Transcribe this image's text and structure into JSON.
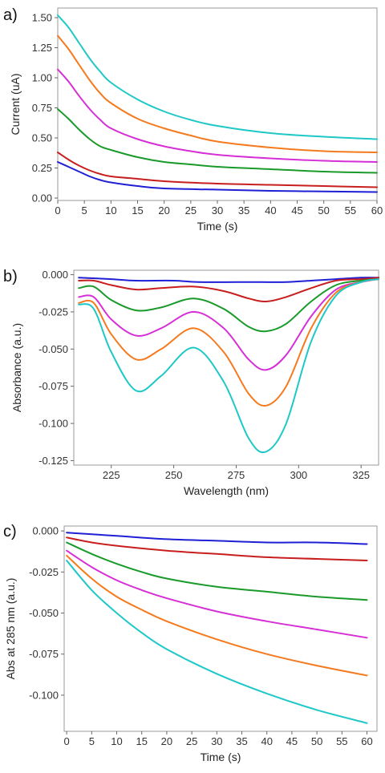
{
  "chart_data": [
    {
      "panel_label": "a)",
      "type": "line",
      "xlabel": "Time (s)",
      "ylabel": "Current (uA)",
      "xlim": [
        0,
        60
      ],
      "ylim": [
        -0.02,
        1.58
      ],
      "xticks": [
        0,
        5,
        10,
        15,
        20,
        25,
        30,
        35,
        40,
        45,
        50,
        55,
        60
      ],
      "yticks": [
        0.0,
        0.25,
        0.5,
        0.75,
        1.0,
        1.25,
        1.5
      ],
      "ytick_labels": [
        "0.00",
        "0.25",
        "0.50",
        "0.75",
        "1.00",
        "1.25",
        "1.50"
      ],
      "grid": false,
      "series": [
        {
          "color": "#1f1fd6",
          "x": [
            0,
            2,
            4,
            6,
            8,
            10,
            15,
            20,
            30,
            40,
            50,
            60
          ],
          "values": [
            0.3,
            0.26,
            0.22,
            0.18,
            0.15,
            0.13,
            0.1,
            0.08,
            0.07,
            0.06,
            0.055,
            0.05
          ]
        },
        {
          "color": "#c81e1e",
          "x": [
            0,
            2,
            4,
            6,
            8,
            10,
            15,
            20,
            30,
            40,
            50,
            60
          ],
          "values": [
            0.38,
            0.32,
            0.27,
            0.23,
            0.2,
            0.18,
            0.16,
            0.14,
            0.12,
            0.11,
            0.1,
            0.09
          ]
        },
        {
          "color": "#1a9a2a",
          "x": [
            0,
            2,
            4,
            6,
            8,
            10,
            15,
            20,
            25,
            30,
            40,
            50,
            60
          ],
          "values": [
            0.74,
            0.66,
            0.57,
            0.49,
            0.43,
            0.4,
            0.34,
            0.3,
            0.28,
            0.26,
            0.24,
            0.22,
            0.21
          ]
        },
        {
          "color": "#d62fd6",
          "x": [
            0,
            2,
            4,
            6,
            8,
            10,
            15,
            20,
            25,
            30,
            40,
            50,
            60
          ],
          "values": [
            1.07,
            0.97,
            0.85,
            0.74,
            0.65,
            0.58,
            0.49,
            0.43,
            0.39,
            0.36,
            0.33,
            0.31,
            0.3
          ]
        },
        {
          "color": "#f57a1e",
          "x": [
            0,
            2,
            4,
            6,
            8,
            10,
            15,
            20,
            25,
            30,
            40,
            50,
            60
          ],
          "values": [
            1.35,
            1.24,
            1.11,
            0.98,
            0.87,
            0.79,
            0.66,
            0.58,
            0.52,
            0.47,
            0.42,
            0.39,
            0.38
          ]
        },
        {
          "color": "#1fc8c8",
          "x": [
            0,
            2,
            4,
            6,
            8,
            10,
            15,
            20,
            25,
            30,
            40,
            50,
            60
          ],
          "values": [
            1.52,
            1.42,
            1.29,
            1.16,
            1.05,
            0.96,
            0.82,
            0.72,
            0.65,
            0.6,
            0.54,
            0.51,
            0.49
          ]
        }
      ]
    },
    {
      "panel_label": "b)",
      "type": "line",
      "xlabel": "Wavelength (nm)",
      "ylabel": "Absorbance (a.u.)",
      "xlim": [
        210,
        332
      ],
      "ylim": [
        -0.128,
        0.003
      ],
      "xticks": [
        225,
        250,
        275,
        300,
        325
      ],
      "yticks": [
        0,
        -0.025,
        -0.05,
        -0.075,
        -0.1,
        -0.125
      ],
      "ytick_labels": [
        "0.000",
        "-0.025",
        "-0.050",
        "-0.075",
        "-0.100",
        "-0.125"
      ],
      "grid": false,
      "series": [
        {
          "color": "#1f1fd6",
          "x": [
            212,
            225,
            235,
            250,
            260,
            275,
            285,
            295,
            305,
            315,
            325,
            332
          ],
          "values": [
            -0.002,
            -0.003,
            -0.004,
            -0.004,
            -0.005,
            -0.005,
            -0.005,
            -0.005,
            -0.004,
            -0.003,
            -0.002,
            -0.002
          ]
        },
        {
          "color": "#c81e1e",
          "x": [
            212,
            218,
            225,
            235,
            245,
            258,
            270,
            280,
            287,
            295,
            305,
            315,
            325,
            332
          ],
          "values": [
            -0.004,
            -0.004,
            -0.007,
            -0.01,
            -0.009,
            -0.008,
            -0.011,
            -0.016,
            -0.018,
            -0.015,
            -0.009,
            -0.004,
            -0.003,
            -0.002
          ]
        },
        {
          "color": "#1a9a2a",
          "x": [
            212,
            218,
            225,
            235,
            245,
            258,
            270,
            280,
            287,
            295,
            305,
            315,
            325,
            332
          ],
          "values": [
            -0.009,
            -0.008,
            -0.017,
            -0.024,
            -0.022,
            -0.016,
            -0.023,
            -0.035,
            -0.038,
            -0.033,
            -0.018,
            -0.007,
            -0.004,
            -0.003
          ]
        },
        {
          "color": "#d62fd6",
          "x": [
            212,
            218,
            225,
            235,
            245,
            258,
            270,
            280,
            287,
            295,
            305,
            315,
            325,
            332
          ],
          "values": [
            -0.015,
            -0.015,
            -0.03,
            -0.041,
            -0.036,
            -0.025,
            -0.036,
            -0.057,
            -0.064,
            -0.054,
            -0.028,
            -0.01,
            -0.005,
            -0.003
          ]
        },
        {
          "color": "#f57a1e",
          "x": [
            212,
            218,
            225,
            235,
            245,
            258,
            270,
            280,
            287,
            295,
            305,
            315,
            325,
            332
          ],
          "values": [
            -0.019,
            -0.019,
            -0.04,
            -0.057,
            -0.05,
            -0.036,
            -0.052,
            -0.08,
            -0.088,
            -0.075,
            -0.036,
            -0.012,
            -0.005,
            -0.003
          ]
        },
        {
          "color": "#1fc8c8",
          "x": [
            212,
            218,
            225,
            235,
            245,
            258,
            270,
            280,
            287,
            295,
            305,
            315,
            325,
            332
          ],
          "values": [
            -0.02,
            -0.023,
            -0.052,
            -0.078,
            -0.068,
            -0.049,
            -0.072,
            -0.11,
            -0.119,
            -0.1,
            -0.045,
            -0.014,
            -0.005,
            -0.003
          ]
        }
      ]
    },
    {
      "panel_label": "c)",
      "type": "line",
      "xlabel": "Time (s)",
      "ylabel": "Abs at 285 nm (a.u.)",
      "xlim": [
        -0.5,
        62
      ],
      "ylim": [
        -0.122,
        0.003
      ],
      "xticks": [
        0,
        5,
        10,
        15,
        20,
        25,
        30,
        35,
        40,
        45,
        50,
        55,
        60
      ],
      "yticks": [
        0,
        -0.025,
        -0.05,
        -0.075,
        -0.1
      ],
      "ytick_labels": [
        "0.000",
        "-0.025",
        "-0.050",
        "-0.075",
        "-0.100"
      ],
      "grid": false,
      "series": [
        {
          "color": "#1f1fd6",
          "x": [
            0,
            10,
            20,
            30,
            40,
            50,
            60
          ],
          "values": [
            -0.001,
            -0.003,
            -0.005,
            -0.006,
            -0.007,
            -0.007,
            -0.008
          ]
        },
        {
          "color": "#c81e1e",
          "x": [
            0,
            5,
            10,
            20,
            30,
            40,
            50,
            60
          ],
          "values": [
            -0.004,
            -0.007,
            -0.009,
            -0.012,
            -0.014,
            -0.016,
            -0.017,
            -0.018
          ]
        },
        {
          "color": "#1a9a2a",
          "x": [
            0,
            5,
            10,
            15,
            20,
            30,
            40,
            50,
            60
          ],
          "values": [
            -0.007,
            -0.014,
            -0.02,
            -0.025,
            -0.029,
            -0.034,
            -0.037,
            -0.04,
            -0.042
          ]
        },
        {
          "color": "#d62fd6",
          "x": [
            0,
            5,
            10,
            15,
            20,
            30,
            40,
            50,
            60
          ],
          "values": [
            -0.012,
            -0.022,
            -0.03,
            -0.036,
            -0.041,
            -0.049,
            -0.055,
            -0.06,
            -0.065
          ]
        },
        {
          "color": "#f57a1e",
          "x": [
            0,
            5,
            10,
            15,
            20,
            30,
            40,
            50,
            60
          ],
          "values": [
            -0.015,
            -0.029,
            -0.04,
            -0.048,
            -0.055,
            -0.066,
            -0.075,
            -0.082,
            -0.088
          ]
        },
        {
          "color": "#1fc8c8",
          "x": [
            0,
            5,
            10,
            15,
            20,
            30,
            40,
            50,
            60
          ],
          "values": [
            -0.018,
            -0.036,
            -0.05,
            -0.062,
            -0.072,
            -0.087,
            -0.099,
            -0.109,
            -0.117
          ]
        }
      ]
    }
  ]
}
